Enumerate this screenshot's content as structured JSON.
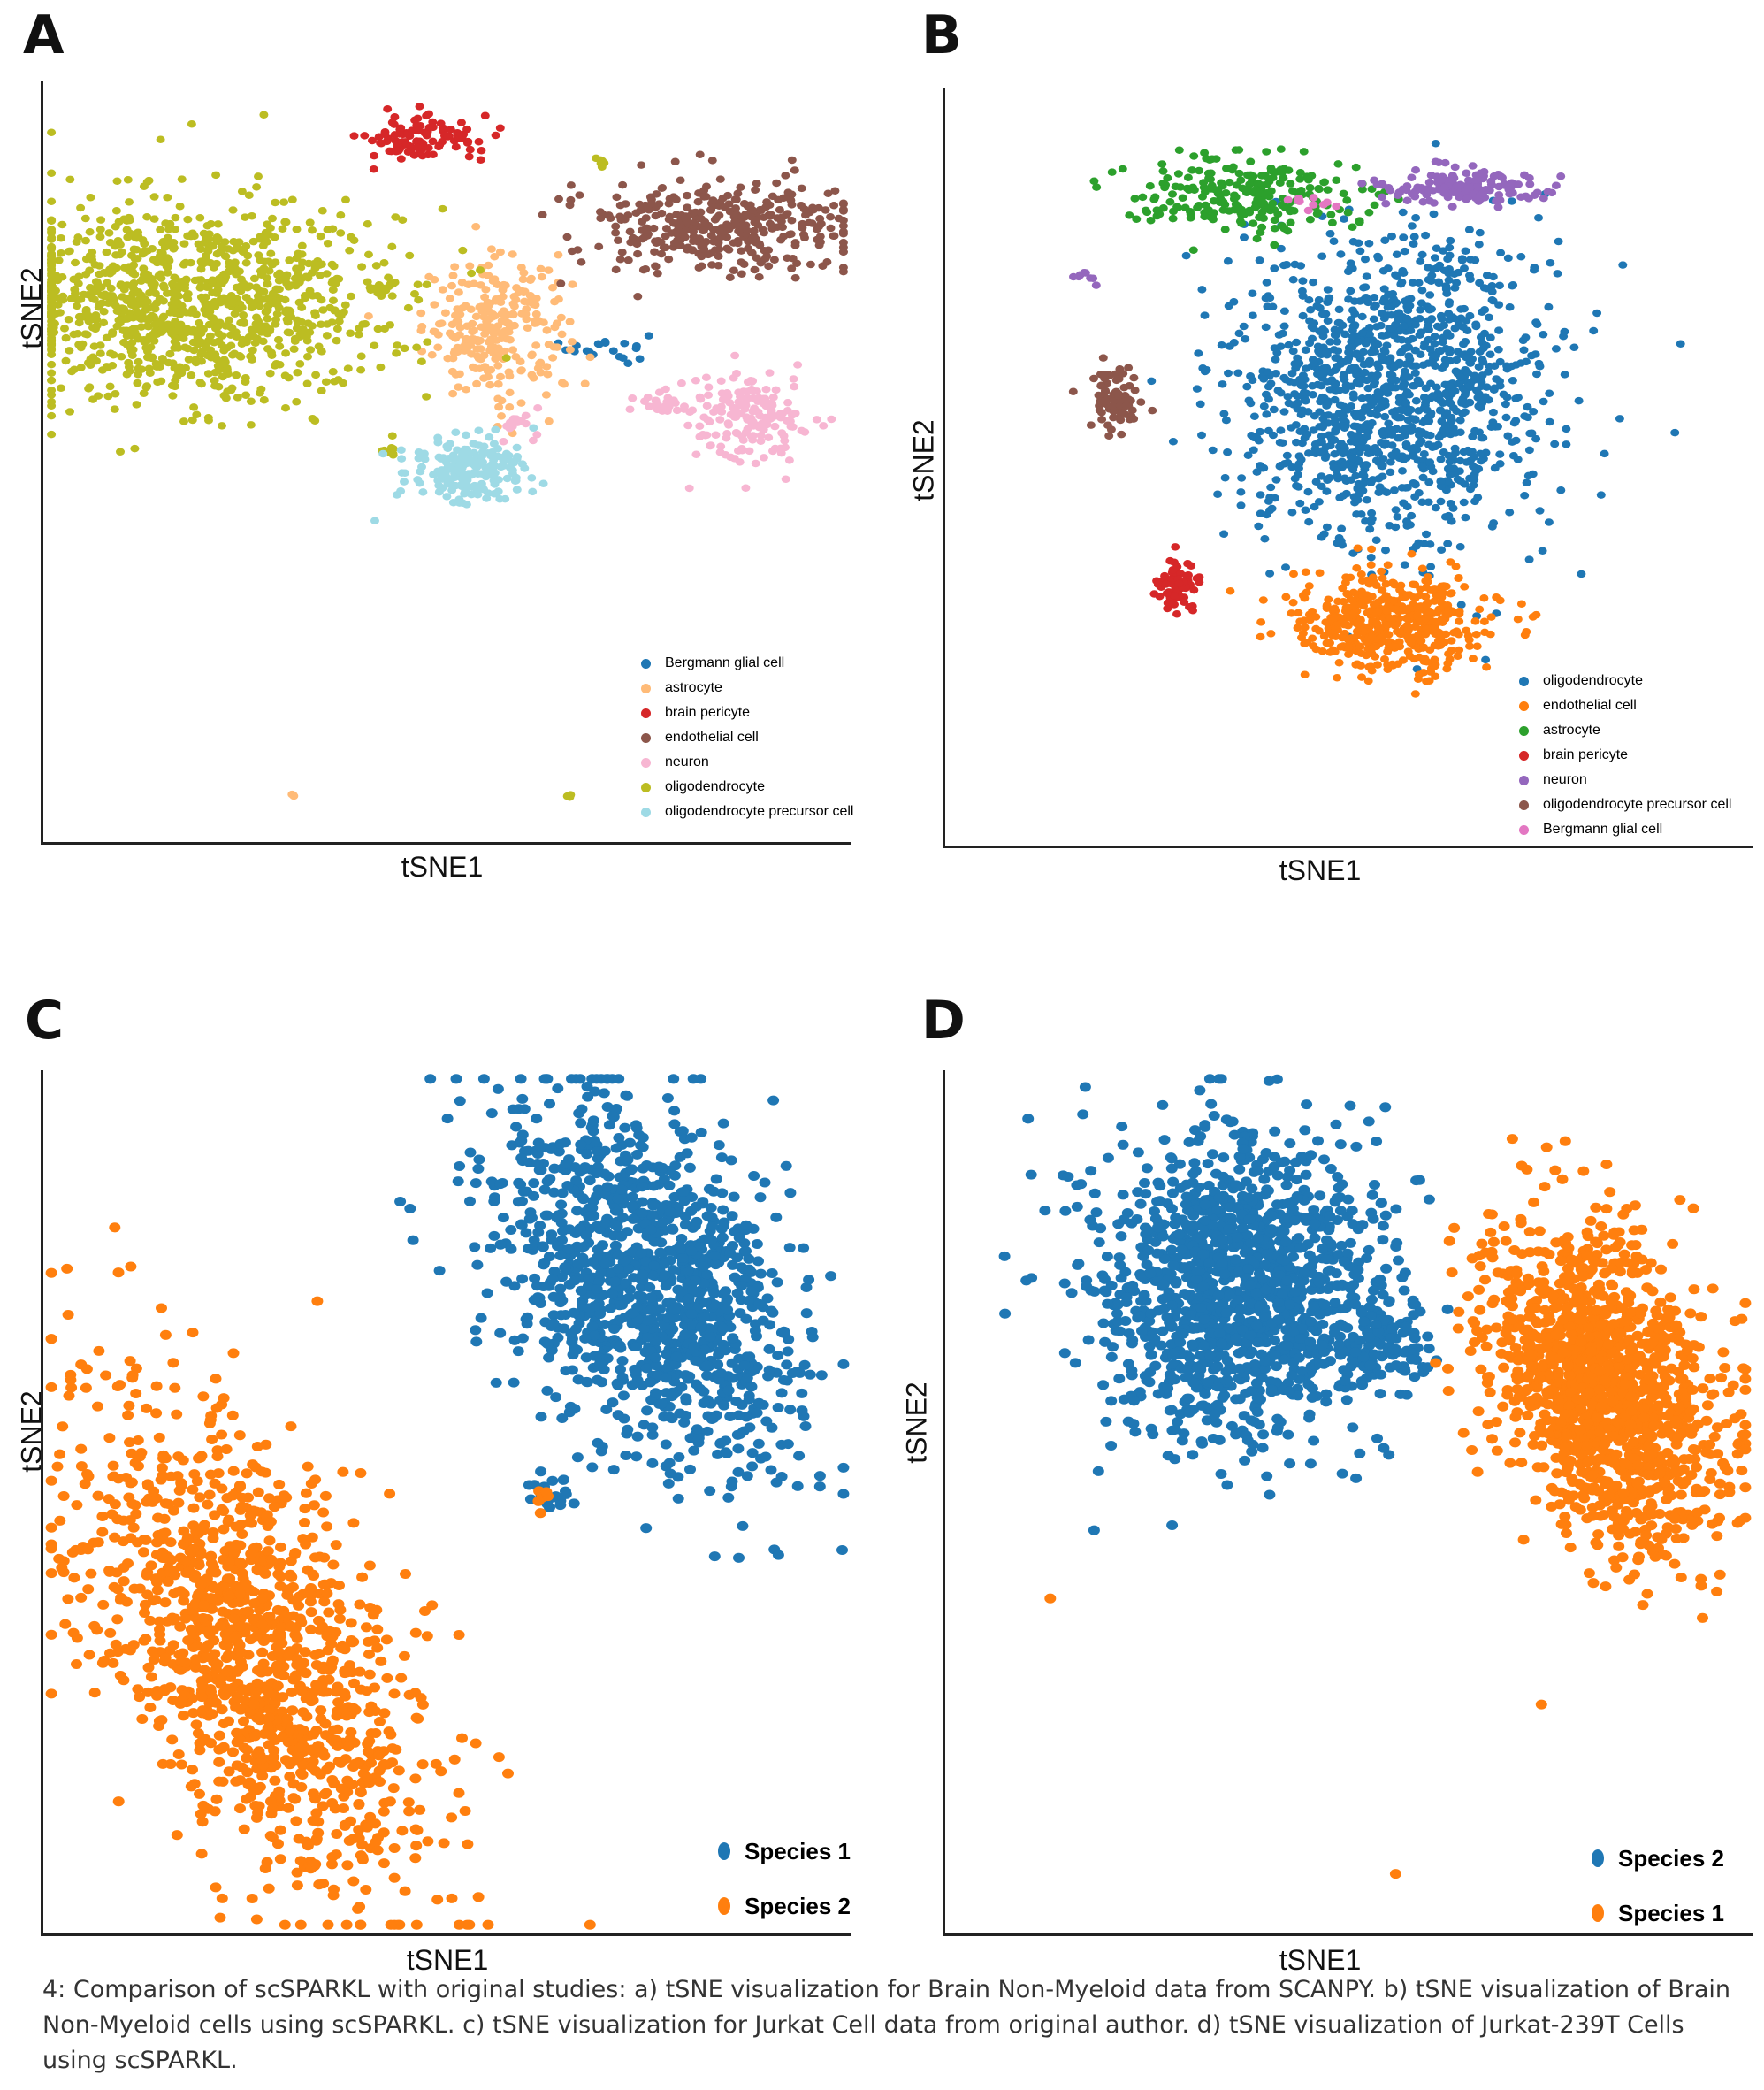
{
  "caption": "4: Comparison of scSPARKL with original studies:  a) tSNE visualization for Brain Non-Myeloid data from SCANPY. b) tSNE visualization of Brain Non-Myeloid cells using scSPARKL. c) tSNE visualization for Jurkat Cell data from original author. d) tSNE visualization of Jurkat-239T Cells using scSPARKL.",
  "chart_data": [
    {
      "panel": "A",
      "type": "scatter",
      "xlabel": "tSNE1",
      "ylabel": "tSNE2",
      "legend_position": "bottom-right",
      "xlim": [
        0,
        100
      ],
      "ylim": [
        0,
        100
      ],
      "series": [
        {
          "name": "Bergmann glial cell",
          "color": "#1f77b4",
          "clusters": [
            {
              "cx": 70,
              "cy": 65,
              "sx": 2.5,
              "sy": 1.0,
              "n": 20
            }
          ]
        },
        {
          "name": "astrocyte",
          "color": "#ffbb78",
          "clusters": [
            {
              "cx": 56,
              "cy": 67.5,
              "sx": 4.5,
              "sy": 4.5,
              "n": 260
            },
            {
              "cx": 31,
              "cy": 6,
              "sx": 0.3,
              "sy": 0.3,
              "n": 3
            }
          ]
        },
        {
          "name": "brain pericyte",
          "color": "#d62728",
          "clusters": [
            {
              "cx": 47,
              "cy": 92.5,
              "sx": 3.5,
              "sy": 1.4,
              "n": 110
            }
          ]
        },
        {
          "name": "endothelial cell",
          "color": "#8c564b",
          "clusters": [
            {
              "cx": 84,
              "cy": 81,
              "sx": 9,
              "sy": 3.2,
              "n": 380
            }
          ]
        },
        {
          "name": "neuron",
          "color": "#f7b6d2",
          "clusters": [
            {
              "cx": 87,
              "cy": 56,
              "sx": 3.6,
              "sy": 3.0,
              "n": 170
            },
            {
              "cx": 76,
              "cy": 57.5,
              "sx": 1.8,
              "sy": 0.6,
              "n": 25
            },
            {
              "cx": 59,
              "cy": 55,
              "sx": 1.5,
              "sy": 1.0,
              "n": 15
            }
          ]
        },
        {
          "name": "oligodendrocyte",
          "color": "#bcbd22",
          "clusters": [
            {
              "cx": 18,
              "cy": 71,
              "sx": 12,
              "sy": 6.5,
              "n": 1100
            },
            {
              "cx": 69,
              "cy": 89.5,
              "sx": 0.4,
              "sy": 0.6,
              "n": 6
            },
            {
              "cx": 43,
              "cy": 73,
              "sx": 0.8,
              "sy": 0.6,
              "n": 8
            },
            {
              "cx": 43,
              "cy": 51.5,
              "sx": 0.8,
              "sy": 0.6,
              "n": 8
            },
            {
              "cx": 65,
              "cy": 6,
              "sx": 0.3,
              "sy": 0.3,
              "n": 3
            }
          ]
        },
        {
          "name": "oligodendrocyte precursor cell",
          "color": "#9edae5",
          "clusters": [
            {
              "cx": 53,
              "cy": 49,
              "sx": 3.8,
              "sy": 2.2,
              "n": 200
            }
          ]
        }
      ]
    },
    {
      "panel": "B",
      "type": "scatter",
      "xlabel": "tSNE1",
      "ylabel": "tSNE2",
      "legend_position": "bottom-right",
      "xlim": [
        0,
        100
      ],
      "ylim": [
        0,
        100
      ],
      "series": [
        {
          "name": "oligodendrocyte",
          "color": "#1f77b4",
          "clusters": [
            {
              "cx": 55,
              "cy": 60,
              "sx": 9.5,
              "sy": 10,
              "n": 1300
            }
          ]
        },
        {
          "name": "endothelial cell",
          "color": "#ff7f0e",
          "clusters": [
            {
              "cx": 55,
              "cy": 29.5,
              "sx": 6.0,
              "sy": 3.5,
              "n": 500
            }
          ]
        },
        {
          "name": "astrocyte",
          "color": "#2ca02c",
          "clusters": [
            {
              "cx": 37,
              "cy": 86,
              "sx": 7,
              "sy": 2.5,
              "n": 240
            }
          ]
        },
        {
          "name": "brain pericyte",
          "color": "#d62728",
          "clusters": [
            {
              "cx": 29,
              "cy": 34,
              "sx": 1.2,
              "sy": 1.8,
              "n": 70
            }
          ]
        },
        {
          "name": "neuron",
          "color": "#9467bd",
          "clusters": [
            {
              "cx": 64,
              "cy": 87,
              "sx": 5.5,
              "sy": 1.2,
              "n": 150
            },
            {
              "cx": 17,
              "cy": 75,
              "sx": 1.5,
              "sy": 0.5,
              "n": 8
            }
          ]
        },
        {
          "name": "oligodendrocyte precursor cell",
          "color": "#8c564b",
          "clusters": [
            {
              "cx": 21,
              "cy": 59,
              "sx": 1.3,
              "sy": 2.2,
              "n": 90
            }
          ]
        },
        {
          "name": "Bergmann glial cell",
          "color": "#e377c2",
          "clusters": [
            {
              "cx": 45,
              "cy": 85,
              "sx": 1.5,
              "sy": 1.0,
              "n": 10
            }
          ]
        }
      ]
    },
    {
      "panel": "C",
      "type": "scatter",
      "xlabel": "tSNE1",
      "ylabel": "tSNE2",
      "legend_position": "bottom-right",
      "xlim": [
        0,
        100
      ],
      "ylim": [
        0,
        100
      ],
      "series": [
        {
          "name": "Species 1",
          "color": "#1f77b4",
          "clusters": [
            {
              "cx": 75,
              "cy": 75,
              "sx": 7.5,
              "sy": 12,
              "n": 1200,
              "rot": 35
            },
            {
              "cx": 63,
              "cy": 51,
              "sx": 1.2,
              "sy": 1.2,
              "n": 20
            }
          ]
        },
        {
          "name": "Species 2",
          "color": "#ff7f0e",
          "clusters": [
            {
              "cx": 25,
              "cy": 33,
              "sx": 8,
              "sy": 16,
              "n": 1250,
              "rot": 30
            },
            {
              "cx": 62,
              "cy": 50.5,
              "sx": 0.8,
              "sy": 0.8,
              "n": 6
            }
          ]
        }
      ]
    },
    {
      "panel": "D",
      "type": "scatter",
      "xlabel": "tSNE1",
      "ylabel": "tSNE2",
      "legend_position": "bottom-right",
      "xlim": [
        0,
        100
      ],
      "ylim": [
        0,
        100
      ],
      "series": [
        {
          "name": "Species 2",
          "color": "#1f77b4",
          "clusters": [
            {
              "cx": 36,
              "cy": 75,
              "sx": 9,
              "sy": 9,
              "n": 1300
            },
            {
              "cx": 53,
              "cy": 68,
              "sx": 4,
              "sy": 2.5,
              "n": 120
            }
          ]
        },
        {
          "name": "Species 1",
          "color": "#ff7f0e",
          "clusters": [
            {
              "cx": 82,
              "cy": 63,
              "sx": 6,
              "sy": 10,
              "n": 1350,
              "rot": 25
            },
            {
              "cx": 13,
              "cy": 39,
              "sx": 0.3,
              "sy": 0.3,
              "n": 1
            },
            {
              "cx": 56,
              "cy": 7,
              "sx": 0.3,
              "sy": 0.3,
              "n": 1
            },
            {
              "cx": 67,
              "cy": 80,
              "sx": 2,
              "sy": 2,
              "n": 10
            }
          ]
        }
      ]
    }
  ]
}
